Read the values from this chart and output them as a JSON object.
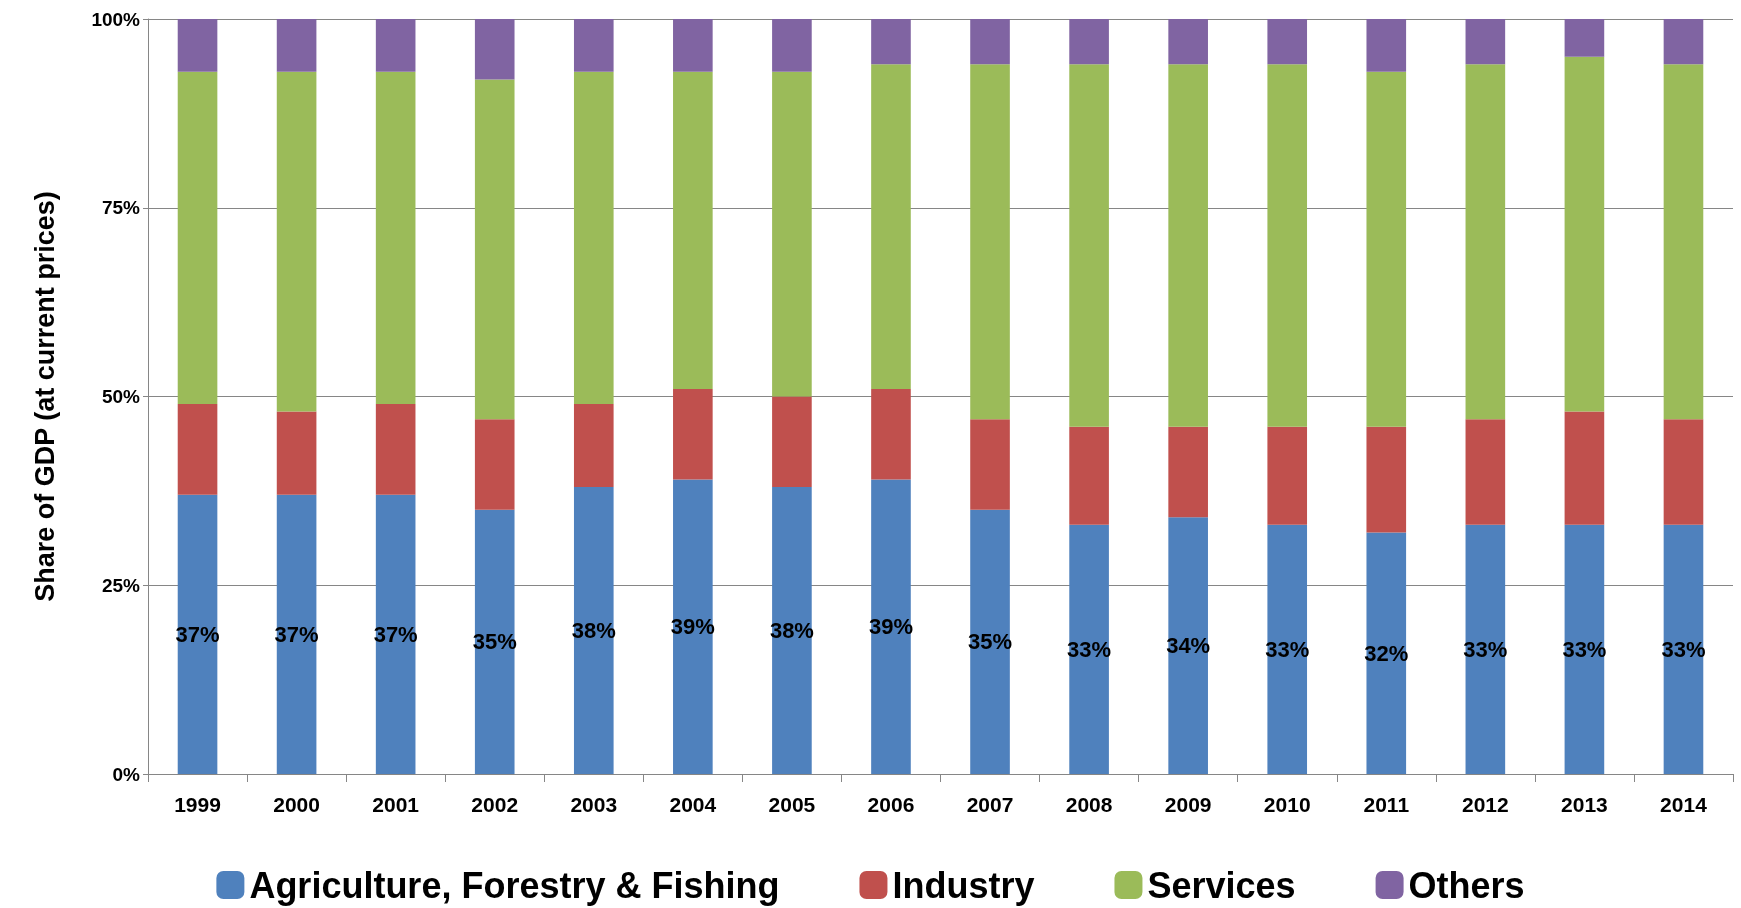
{
  "chart_data": {
    "type": "bar",
    "stacked": true,
    "ylabel": "Share of GDP (at current prices)",
    "categories": [
      "1999",
      "2000",
      "2001",
      "2002",
      "2003",
      "2004",
      "2005",
      "2006",
      "2007",
      "2008",
      "2009",
      "2010",
      "2011",
      "2012",
      "2013",
      "2014"
    ],
    "series": [
      {
        "name": "Agriculture, Forestry & Fishing",
        "color": "#4f81bd",
        "values": [
          37,
          37,
          37,
          35,
          38,
          39,
          38,
          39,
          35,
          33,
          34,
          33,
          32,
          33,
          33,
          33
        ],
        "value_labels": [
          "37%",
          "37%",
          "37%",
          "35%",
          "38%",
          "39%",
          "38%",
          "39%",
          "35%",
          "33%",
          "34%",
          "33%",
          "32%",
          "33%",
          "33%",
          "33%"
        ]
      },
      {
        "name": "Industry",
        "color": "#c0504d",
        "values": [
          12,
          11,
          12,
          12,
          11,
          12,
          12,
          12,
          12,
          13,
          12,
          13,
          14,
          14,
          15,
          14
        ]
      },
      {
        "name": "Services",
        "color": "#9bbb59",
        "values": [
          44,
          45,
          44,
          45,
          44,
          42,
          43,
          43,
          47,
          48,
          48,
          48,
          47,
          47,
          47,
          47
        ]
      },
      {
        "name": "Others",
        "color": "#8064a2",
        "values": [
          7,
          7,
          7,
          8,
          7,
          7,
          7,
          6,
          6,
          6,
          6,
          6,
          7,
          6,
          5,
          6
        ]
      }
    ],
    "ylim": [
      0,
      100
    ],
    "yticks": [
      {
        "value": 0,
        "label": "0%"
      },
      {
        "value": 25,
        "label": "25%"
      },
      {
        "value": 50,
        "label": "50%"
      },
      {
        "value": 75,
        "label": "75%"
      },
      {
        "value": 100,
        "label": "100%"
      }
    ],
    "grid": "y",
    "legend": "bottom"
  }
}
